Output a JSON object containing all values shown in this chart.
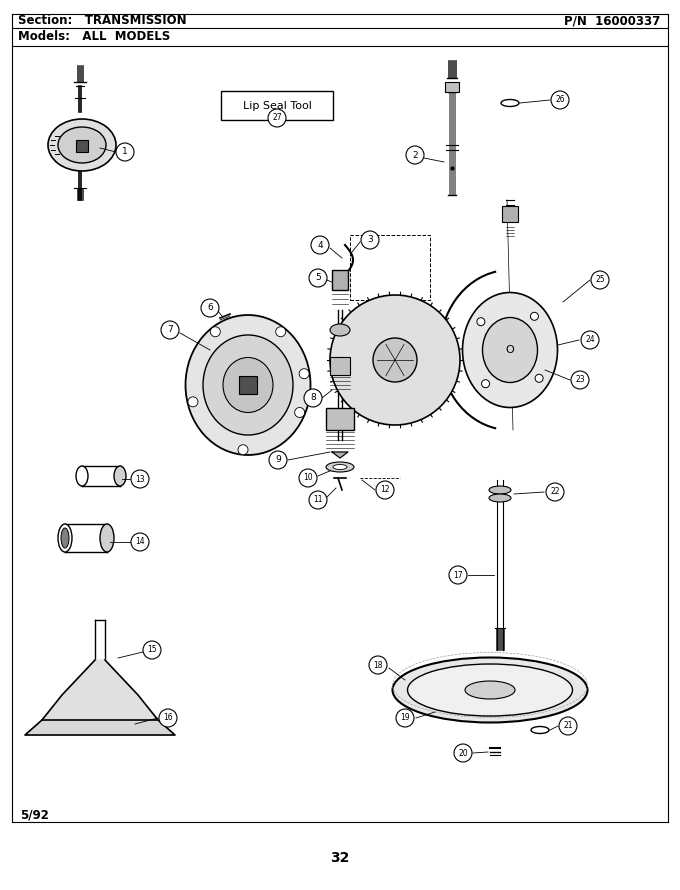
{
  "title_section": "Section:   TRANSMISSION",
  "title_pn": "P/N  16000337",
  "title_models": "Models:   ALL  MODELS",
  "page_number": "32",
  "date": "5/92",
  "bg_color": "#ffffff",
  "border_color": "#000000",
  "text_color": "#000000",
  "fig_width": 6.8,
  "fig_height": 8.9,
  "dpi": 100,
  "lc": "black"
}
